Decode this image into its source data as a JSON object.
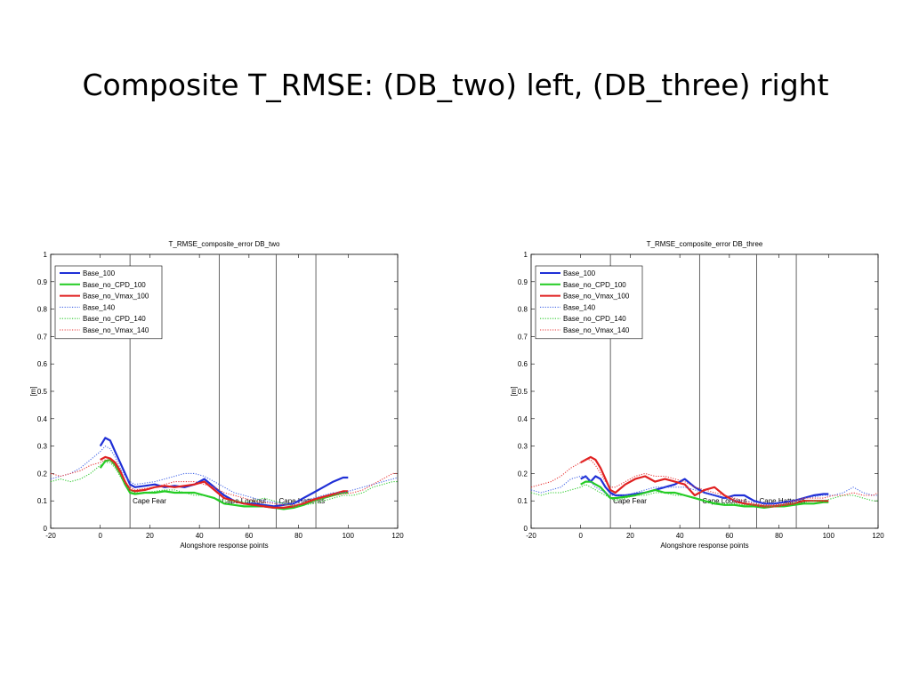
{
  "slide": {
    "title": "Composite T_RMSE: (DB_two) left, (DB_three) right"
  },
  "chart_data": [
    {
      "type": "line",
      "title": "T_RMSE_composite_error DB_two",
      "xlabel": "Alongshore response points",
      "ylabel": "[m]",
      "xlim": [
        -20,
        120
      ],
      "ylim": [
        0,
        1
      ],
      "xticks": [
        -20,
        0,
        20,
        40,
        60,
        80,
        100,
        120
      ],
      "yticks": [
        0,
        0.1,
        0.2,
        0.3,
        0.4,
        0.5,
        0.6,
        0.7,
        0.8,
        0.9,
        1
      ],
      "grid": false,
      "legend_position": "top-left",
      "vlines": [
        {
          "x": 12,
          "label": "Cape Fear"
        },
        {
          "x": 48,
          "label": "Cape Lookout"
        },
        {
          "x": 71,
          "label": "Cape Hatteras"
        },
        {
          "x": 87,
          "label": ""
        }
      ],
      "series": [
        {
          "name": "Base_100",
          "color": "#1f2fd6",
          "style": "solid",
          "x": [
            0,
            2,
            4,
            6,
            8,
            10,
            12,
            14,
            18,
            22,
            26,
            30,
            34,
            38,
            42,
            46,
            50,
            54,
            58,
            62,
            66,
            70,
            74,
            78,
            82,
            86,
            90,
            94,
            98,
            100
          ],
          "y": [
            0.3,
            0.33,
            0.32,
            0.28,
            0.24,
            0.2,
            0.16,
            0.15,
            0.155,
            0.16,
            0.15,
            0.155,
            0.15,
            0.16,
            0.18,
            0.15,
            0.12,
            0.1,
            0.09,
            0.09,
            0.085,
            0.08,
            0.085,
            0.09,
            0.11,
            0.13,
            0.15,
            0.17,
            0.185,
            0.185
          ]
        },
        {
          "name": "Base_no_CPD_100",
          "color": "#22cc22",
          "style": "solid",
          "x": [
            0,
            2,
            4,
            6,
            8,
            10,
            12,
            14,
            18,
            22,
            26,
            30,
            34,
            38,
            42,
            46,
            50,
            54,
            58,
            62,
            66,
            70,
            74,
            78,
            82,
            86,
            90,
            94,
            98,
            100
          ],
          "y": [
            0.22,
            0.245,
            0.25,
            0.23,
            0.2,
            0.16,
            0.13,
            0.125,
            0.13,
            0.13,
            0.135,
            0.13,
            0.13,
            0.13,
            0.12,
            0.11,
            0.09,
            0.085,
            0.08,
            0.08,
            0.08,
            0.075,
            0.07,
            0.075,
            0.085,
            0.1,
            0.11,
            0.12,
            0.13,
            0.13
          ]
        },
        {
          "name": "Base_no_Vmax_100",
          "color": "#e02020",
          "style": "solid",
          "x": [
            0,
            2,
            4,
            6,
            8,
            10,
            12,
            14,
            18,
            22,
            26,
            30,
            34,
            38,
            42,
            46,
            50,
            54,
            58,
            62,
            66,
            70,
            74,
            78,
            82,
            86,
            90,
            94,
            98,
            100
          ],
          "y": [
            0.25,
            0.26,
            0.255,
            0.24,
            0.21,
            0.17,
            0.14,
            0.135,
            0.14,
            0.15,
            0.155,
            0.15,
            0.155,
            0.16,
            0.17,
            0.14,
            0.11,
            0.1,
            0.09,
            0.085,
            0.08,
            0.075,
            0.075,
            0.08,
            0.09,
            0.105,
            0.115,
            0.125,
            0.135,
            0.135
          ]
        },
        {
          "name": "Base_140",
          "color": "#4a6be8",
          "style": "dotted",
          "x": [
            -20,
            -16,
            -12,
            -8,
            -4,
            0,
            2,
            4,
            6,
            8,
            10,
            12,
            14,
            18,
            22,
            26,
            30,
            34,
            38,
            42,
            46,
            50,
            54,
            58,
            62,
            66,
            70,
            74,
            78,
            82,
            86,
            90,
            94,
            98,
            102,
            106,
            110,
            114,
            118,
            120
          ],
          "y": [
            0.18,
            0.19,
            0.2,
            0.22,
            0.25,
            0.28,
            0.3,
            0.29,
            0.26,
            0.22,
            0.19,
            0.17,
            0.16,
            0.165,
            0.17,
            0.18,
            0.19,
            0.2,
            0.2,
            0.19,
            0.17,
            0.15,
            0.13,
            0.12,
            0.11,
            0.1,
            0.095,
            0.09,
            0.09,
            0.1,
            0.11,
            0.12,
            0.13,
            0.13,
            0.14,
            0.15,
            0.16,
            0.17,
            0.18,
            0.185
          ]
        },
        {
          "name": "Base_no_CPD_140",
          "color": "#33cc33",
          "style": "dotted",
          "x": [
            -20,
            -16,
            -12,
            -8,
            -4,
            0,
            2,
            4,
            6,
            8,
            10,
            12,
            14,
            18,
            22,
            26,
            30,
            34,
            38,
            42,
            46,
            50,
            54,
            58,
            62,
            66,
            70,
            74,
            78,
            82,
            86,
            90,
            94,
            98,
            102,
            106,
            110,
            114,
            118,
            120
          ],
          "y": [
            0.17,
            0.18,
            0.17,
            0.18,
            0.2,
            0.23,
            0.24,
            0.24,
            0.22,
            0.19,
            0.16,
            0.14,
            0.13,
            0.13,
            0.135,
            0.14,
            0.14,
            0.13,
            0.12,
            0.12,
            0.11,
            0.1,
            0.1,
            0.095,
            0.1,
            0.11,
            0.1,
            0.09,
            0.08,
            0.085,
            0.09,
            0.1,
            0.11,
            0.12,
            0.12,
            0.13,
            0.15,
            0.16,
            0.17,
            0.17
          ]
        },
        {
          "name": "Base_no_Vmax_140",
          "color": "#e83a3a",
          "style": "dotted",
          "x": [
            -20,
            -16,
            -12,
            -8,
            -4,
            0,
            2,
            4,
            6,
            8,
            10,
            12,
            14,
            18,
            22,
            26,
            30,
            34,
            38,
            42,
            46,
            50,
            54,
            58,
            62,
            66,
            70,
            74,
            78,
            82,
            86,
            90,
            94,
            98,
            102,
            106,
            110,
            114,
            118,
            120
          ],
          "y": [
            0.2,
            0.19,
            0.2,
            0.21,
            0.23,
            0.24,
            0.25,
            0.25,
            0.23,
            0.2,
            0.17,
            0.15,
            0.14,
            0.145,
            0.15,
            0.16,
            0.17,
            0.17,
            0.17,
            0.16,
            0.15,
            0.13,
            0.12,
            0.11,
            0.1,
            0.095,
            0.09,
            0.085,
            0.085,
            0.09,
            0.1,
            0.11,
            0.12,
            0.125,
            0.13,
            0.14,
            0.16,
            0.18,
            0.2,
            0.2
          ]
        }
      ]
    },
    {
      "type": "line",
      "title": "T_RMSE_composite_error DB_three",
      "xlabel": "Alongshore response points",
      "ylabel": "[m]",
      "xlim": [
        -20,
        120
      ],
      "ylim": [
        0,
        1
      ],
      "xticks": [
        -20,
        0,
        20,
        40,
        60,
        80,
        100,
        120
      ],
      "yticks": [
        0,
        0.1,
        0.2,
        0.3,
        0.4,
        0.5,
        0.6,
        0.7,
        0.8,
        0.9,
        1
      ],
      "grid": false,
      "legend_position": "top-left",
      "vlines": [
        {
          "x": 12,
          "label": "Cape Fear"
        },
        {
          "x": 48,
          "label": "Cape Lookout"
        },
        {
          "x": 71,
          "label": "Cape Hatteras"
        },
        {
          "x": 87,
          "label": ""
        }
      ],
      "series": [
        {
          "name": "Base_100",
          "color": "#1f2fd6",
          "style": "solid",
          "x": [
            0,
            2,
            4,
            6,
            8,
            10,
            12,
            14,
            18,
            22,
            26,
            30,
            34,
            38,
            42,
            46,
            50,
            54,
            58,
            62,
            66,
            70,
            74,
            78,
            82,
            86,
            90,
            94,
            98,
            100
          ],
          "y": [
            0.18,
            0.19,
            0.17,
            0.19,
            0.18,
            0.15,
            0.13,
            0.12,
            0.12,
            0.125,
            0.13,
            0.14,
            0.15,
            0.16,
            0.18,
            0.15,
            0.13,
            0.12,
            0.11,
            0.12,
            0.12,
            0.1,
            0.09,
            0.09,
            0.095,
            0.1,
            0.11,
            0.12,
            0.125,
            0.125
          ]
        },
        {
          "name": "Base_no_CPD_100",
          "color": "#22cc22",
          "style": "solid",
          "x": [
            0,
            2,
            4,
            6,
            8,
            10,
            12,
            14,
            18,
            22,
            26,
            30,
            34,
            38,
            42,
            46,
            50,
            54,
            58,
            62,
            66,
            70,
            74,
            78,
            82,
            86,
            90,
            94,
            98,
            100
          ],
          "y": [
            0.16,
            0.17,
            0.17,
            0.16,
            0.15,
            0.13,
            0.11,
            0.11,
            0.115,
            0.12,
            0.13,
            0.14,
            0.13,
            0.13,
            0.12,
            0.11,
            0.1,
            0.09,
            0.085,
            0.085,
            0.08,
            0.08,
            0.075,
            0.08,
            0.08,
            0.085,
            0.09,
            0.09,
            0.095,
            0.095
          ]
        },
        {
          "name": "Base_no_Vmax_100",
          "color": "#e02020",
          "style": "solid",
          "x": [
            0,
            2,
            4,
            6,
            8,
            10,
            12,
            14,
            18,
            22,
            26,
            30,
            34,
            38,
            42,
            46,
            50,
            54,
            58,
            62,
            66,
            70,
            74,
            78,
            82,
            86,
            90,
            94,
            98,
            100
          ],
          "y": [
            0.24,
            0.25,
            0.26,
            0.25,
            0.22,
            0.18,
            0.14,
            0.13,
            0.16,
            0.18,
            0.19,
            0.17,
            0.18,
            0.17,
            0.16,
            0.12,
            0.14,
            0.15,
            0.12,
            0.1,
            0.09,
            0.085,
            0.08,
            0.08,
            0.085,
            0.09,
            0.1,
            0.1,
            0.1,
            0.1
          ]
        },
        {
          "name": "Base_140",
          "color": "#4a6be8",
          "style": "dotted",
          "x": [
            -20,
            -16,
            -12,
            -8,
            -4,
            0,
            2,
            4,
            6,
            8,
            10,
            12,
            14,
            18,
            22,
            26,
            30,
            34,
            38,
            42,
            46,
            50,
            54,
            58,
            62,
            66,
            70,
            74,
            78,
            82,
            86,
            90,
            94,
            98,
            102,
            106,
            110,
            114,
            118,
            120
          ],
          "y": [
            0.14,
            0.13,
            0.14,
            0.15,
            0.18,
            0.19,
            0.19,
            0.17,
            0.15,
            0.14,
            0.13,
            0.12,
            0.12,
            0.12,
            0.13,
            0.14,
            0.15,
            0.15,
            0.15,
            0.15,
            0.14,
            0.13,
            0.12,
            0.11,
            0.1,
            0.1,
            0.095,
            0.09,
            0.09,
            0.095,
            0.1,
            0.11,
            0.115,
            0.12,
            0.12,
            0.13,
            0.15,
            0.13,
            0.12,
            0.12
          ]
        },
        {
          "name": "Base_no_CPD_140",
          "color": "#33cc33",
          "style": "dotted",
          "x": [
            -20,
            -16,
            -12,
            -8,
            -4,
            0,
            2,
            4,
            6,
            8,
            10,
            12,
            14,
            18,
            22,
            26,
            30,
            34,
            38,
            42,
            46,
            50,
            54,
            58,
            62,
            66,
            70,
            74,
            78,
            82,
            86,
            90,
            94,
            98,
            102,
            106,
            110,
            114,
            118,
            120
          ],
          "y": [
            0.13,
            0.12,
            0.13,
            0.13,
            0.14,
            0.15,
            0.16,
            0.15,
            0.14,
            0.13,
            0.12,
            0.11,
            0.1,
            0.11,
            0.12,
            0.12,
            0.13,
            0.13,
            0.12,
            0.12,
            0.11,
            0.1,
            0.095,
            0.09,
            0.09,
            0.085,
            0.085,
            0.08,
            0.08,
            0.085,
            0.09,
            0.095,
            0.1,
            0.1,
            0.11,
            0.12,
            0.12,
            0.11,
            0.1,
            0.1
          ]
        },
        {
          "name": "Base_no_Vmax_140",
          "color": "#e83a3a",
          "style": "dotted",
          "x": [
            -20,
            -16,
            -12,
            -8,
            -4,
            0,
            2,
            4,
            6,
            8,
            10,
            12,
            14,
            18,
            22,
            26,
            30,
            34,
            38,
            42,
            46,
            50,
            54,
            58,
            62,
            66,
            70,
            74,
            78,
            82,
            86,
            90,
            94,
            98,
            102,
            106,
            110,
            114,
            118,
            120
          ],
          "y": [
            0.15,
            0.16,
            0.17,
            0.19,
            0.22,
            0.24,
            0.25,
            0.25,
            0.23,
            0.2,
            0.17,
            0.15,
            0.15,
            0.17,
            0.19,
            0.2,
            0.19,
            0.19,
            0.18,
            0.17,
            0.15,
            0.14,
            0.13,
            0.12,
            0.11,
            0.1,
            0.09,
            0.085,
            0.085,
            0.09,
            0.1,
            0.11,
            0.11,
            0.11,
            0.12,
            0.12,
            0.13,
            0.12,
            0.12,
            0.13
          ]
        }
      ]
    }
  ]
}
